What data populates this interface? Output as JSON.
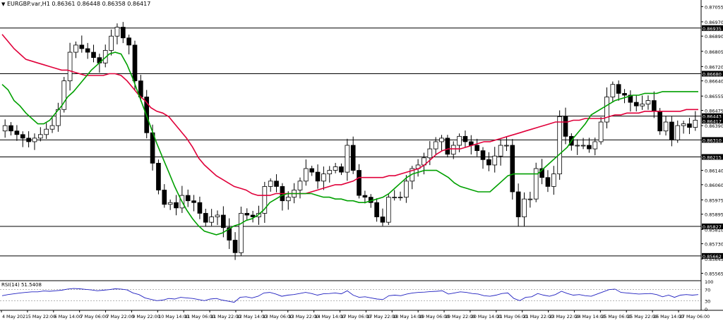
{
  "window": {
    "menu_icon": "triangle-down-icon",
    "symbol": "EURGBP.var,H1",
    "ohlc": "0.86361 0.86448 0.86358 0.86417"
  },
  "colors": {
    "background": "#ffffff",
    "candle": "#000000",
    "ma_fast": "#00a000",
    "ma_slow": "#e0003a",
    "level_line": "#000000",
    "rsi_line": "#2020c0",
    "price_label_bg": "#000000",
    "price_label_text": "#ffffff"
  },
  "chart_data": [
    {
      "type": "candlestick",
      "title": "EURGBP.var,H1",
      "ylim": [
        0.855275,
        0.870918
      ],
      "y_ticks": [
        "0.87055",
        "0.86970",
        "0.86890",
        "0.86805",
        "0.86720",
        "0.86640",
        "0.86555",
        "0.86475",
        "0.86390",
        "0.86310",
        "0.86225",
        "0.86140",
        "0.86060",
        "0.85975",
        "0.85895",
        "0.85810",
        "0.85730",
        "0.85645",
        "0.85565"
      ],
      "horizontal_levels": [
        "0.86935",
        "0.86680",
        "0.86443",
        "0.86310",
        "0.86215",
        "0.85827",
        "0.85662"
      ],
      "current_price": "0.86417",
      "x_ticks": [
        "4 May 2021",
        "5 May 22:00",
        "6 May 14:00",
        "7 May 06:00",
        "7 May 22:00",
        "9 May 22:00",
        "10 May 14:00",
        "11 May 06:00",
        "11 May 22:00",
        "12 May 14:00",
        "13 May 06:00",
        "13 May 22:00",
        "14 May 14:00",
        "17 May 06:00",
        "17 May 22:00",
        "18 May 14:00",
        "19 May 06:00",
        "19 May 22:00",
        "20 May 14:00",
        "21 May 06:00",
        "21 May 22:00",
        "23 May 22:00",
        "24 May 14:00",
        "25 May 06:00",
        "25 May 22:00",
        "26 May 14:00",
        "27 May 06:00"
      ],
      "close": [
        0.8639,
        0.8636,
        0.8634,
        0.8632,
        0.863,
        0.8632,
        0.8634,
        0.8637,
        0.8639,
        0.8648,
        0.8664,
        0.868,
        0.8684,
        0.8682,
        0.868,
        0.8677,
        0.8674,
        0.8681,
        0.8689,
        0.8694,
        0.8688,
        0.8684,
        0.8664,
        0.8655,
        0.8635,
        0.8618,
        0.8603,
        0.8595,
        0.8596,
        0.8593,
        0.86,
        0.8597,
        0.8596,
        0.859,
        0.8585,
        0.8588,
        0.8589,
        0.8582,
        0.8575,
        0.8568,
        0.859,
        0.8589,
        0.8588,
        0.859,
        0.8605,
        0.8608,
        0.8605,
        0.8597,
        0.8599,
        0.8603,
        0.8608,
        0.8615,
        0.8613,
        0.8608,
        0.8612,
        0.8614,
        0.8616,
        0.8613,
        0.8628,
        0.8614,
        0.86,
        0.8599,
        0.8596,
        0.8588,
        0.8585,
        0.8599,
        0.8599,
        0.8599,
        0.8608,
        0.8615,
        0.8617,
        0.8621,
        0.8626,
        0.863,
        0.8632,
        0.8623,
        0.8628,
        0.8633,
        0.863,
        0.8628,
        0.8625,
        0.862,
        0.8617,
        0.8622,
        0.8628,
        0.8628,
        0.8602,
        0.8588,
        0.8598,
        0.8598,
        0.8615,
        0.861,
        0.8605,
        0.8612,
        0.8644,
        0.8633,
        0.8628,
        0.8628,
        0.8628,
        0.8626,
        0.863,
        0.8641,
        0.8655,
        0.8662,
        0.8657,
        0.8656,
        0.8652,
        0.865,
        0.8651,
        0.8653,
        0.8647,
        0.8636,
        0.8641,
        0.8631,
        0.8639,
        0.864,
        0.8638,
        0.8642
      ],
      "series": [
        {
          "values": [
            0.869,
            0.8686,
            0.8682,
            0.8679,
            0.8676,
            0.8675,
            0.8674,
            0.8673,
            0.8672,
            0.8671,
            0.867,
            0.867,
            0.8669,
            0.8668,
            0.8667,
            0.8667,
            0.8667,
            0.8667,
            0.8668,
            0.8668,
            0.8667,
            0.8664,
            0.866,
            0.8656,
            0.8653,
            0.8649,
            0.8647,
            0.8646,
            0.8644,
            0.864,
            0.8636,
            0.8632,
            0.8627,
            0.8621,
            0.8617,
            0.8614,
            0.8611,
            0.8609,
            0.8607,
            0.8605,
            0.8604,
            0.8603,
            0.8601,
            0.86,
            0.86,
            0.86,
            0.8601,
            0.8601,
            0.8601,
            0.8601,
            0.8601,
            0.8601,
            0.8602,
            0.8603,
            0.8604,
            0.8605,
            0.8606,
            0.8606,
            0.8607,
            0.8608,
            0.861,
            0.861,
            0.861,
            0.861,
            0.861,
            0.8611,
            0.8611,
            0.8612,
            0.8613,
            0.8614,
            0.8615,
            0.8617,
            0.862,
            0.8623,
            0.8625,
            0.8626,
            0.8626,
            0.8626,
            0.8627,
            0.8628,
            0.8629,
            0.863,
            0.863,
            0.8631,
            0.8632,
            0.8633,
            0.8634,
            0.8635,
            0.8636,
            0.8637,
            0.8638,
            0.8639,
            0.864,
            0.8641,
            0.8641,
            0.8641,
            0.8642,
            0.8642,
            0.8643,
            0.8643,
            0.8643,
            0.8643,
            0.8644,
            0.8645,
            0.8645,
            0.8646,
            0.8646,
            0.8646,
            0.8647,
            0.8647,
            0.8647,
            0.8647,
            0.8647,
            0.8647,
            0.8647,
            0.8648,
            0.8648,
            0.8648
          ]
        },
        {
          "values": [
            0.8662,
            0.8659,
            0.8653,
            0.865,
            0.8646,
            0.8643,
            0.864,
            0.864,
            0.8642,
            0.8646,
            0.865,
            0.8655,
            0.8658,
            0.8662,
            0.8666,
            0.867,
            0.8673,
            0.8676,
            0.8679,
            0.868,
            0.8679,
            0.8673,
            0.8665,
            0.8656,
            0.8647,
            0.8638,
            0.8629,
            0.8621,
            0.8613,
            0.8605,
            0.8598,
            0.8592,
            0.8587,
            0.8583,
            0.858,
            0.8579,
            0.8578,
            0.8579,
            0.8581,
            0.8583,
            0.8584,
            0.8586,
            0.8587,
            0.8589,
            0.8592,
            0.8596,
            0.8598,
            0.86,
            0.8601,
            0.8601,
            0.8601,
            0.8601,
            0.8601,
            0.86,
            0.8599,
            0.8599,
            0.8598,
            0.8598,
            0.8597,
            0.8597,
            0.8596,
            0.8596,
            0.8597,
            0.8598,
            0.8599,
            0.8601,
            0.8604,
            0.8607,
            0.861,
            0.8612,
            0.8613,
            0.8614,
            0.8614,
            0.8614,
            0.8612,
            0.861,
            0.8607,
            0.8605,
            0.8604,
            0.8603,
            0.8602,
            0.8602,
            0.8602,
            0.8605,
            0.8608,
            0.8611,
            0.8612,
            0.8612,
            0.8612,
            0.8612,
            0.8612,
            0.8615,
            0.8618,
            0.8621,
            0.8624,
            0.8627,
            0.8632,
            0.8636,
            0.864,
            0.8645,
            0.8647,
            0.8649,
            0.8651,
            0.8653,
            0.8654,
            0.8655,
            0.8656,
            0.8656,
            0.8657,
            0.8657,
            0.8657,
            0.8658,
            0.8658,
            0.8658,
            0.8658,
            0.8658,
            0.8658,
            0.8658
          ]
        }
      ]
    },
    {
      "type": "line",
      "title": "RSI(14) 51.5408",
      "ylim": [
        0,
        100
      ],
      "y_ticks": [
        "100",
        "70",
        "30",
        "0"
      ],
      "levels": [
        70,
        30
      ],
      "values": [
        48,
        52,
        55,
        58,
        60,
        62,
        62,
        65,
        64,
        66,
        68,
        72,
        74,
        73,
        71,
        69,
        66,
        68,
        70,
        73,
        72,
        69,
        58,
        52,
        40,
        35,
        30,
        32,
        38,
        36,
        42,
        40,
        38,
        34,
        30,
        36,
        38,
        32,
        28,
        24,
        42,
        44,
        40,
        46,
        58,
        60,
        54,
        46,
        50,
        52,
        56,
        60,
        56,
        50,
        55,
        56,
        58,
        55,
        66,
        50,
        42,
        44,
        40,
        36,
        34,
        48,
        50,
        48,
        54,
        58,
        60,
        61,
        63,
        64,
        66,
        54,
        58,
        62,
        60,
        56,
        54,
        48,
        46,
        50,
        56,
        58,
        38,
        30,
        42,
        44,
        56,
        50,
        46,
        52,
        64,
        56,
        50,
        52,
        48,
        46,
        54,
        62,
        70,
        72,
        60,
        58,
        56,
        54,
        55,
        56,
        52,
        44,
        50,
        42,
        50,
        52,
        50,
        52
      ]
    }
  ]
}
